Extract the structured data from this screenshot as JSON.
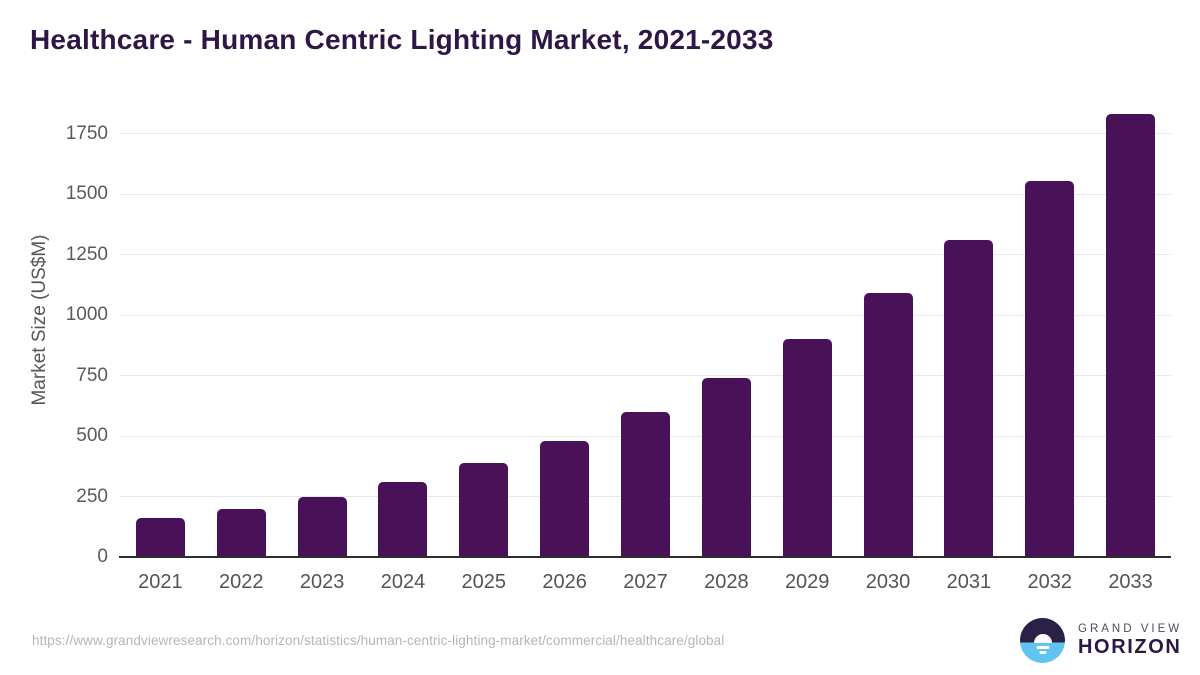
{
  "title": "Healthcare - Human Centric Lighting Market, 2021-2033",
  "chart_data": {
    "type": "bar",
    "categories": [
      "2021",
      "2022",
      "2023",
      "2024",
      "2025",
      "2026",
      "2027",
      "2028",
      "2029",
      "2030",
      "2031",
      "2032",
      "2033"
    ],
    "values": [
      160,
      200,
      250,
      310,
      390,
      480,
      600,
      740,
      900,
      1090,
      1310,
      1555,
      1830
    ],
    "title": "Healthcare - Human Centric Lighting Market, 2021-2033",
    "xlabel": "",
    "ylabel": "Market Size (US$M)",
    "ylim": [
      0,
      1900
    ],
    "yticks": [
      0,
      250,
      500,
      750,
      1000,
      1250,
      1500,
      1750
    ],
    "grid": true,
    "legend": "none",
    "bar_color": "#491158"
  },
  "colors": {
    "bar": "#491158",
    "title_text": "#2e1745",
    "axis_label_text": "#5a5a5a",
    "gridline": "#e8e8e8",
    "axis_line": "#2e2e2e",
    "url_text": "#b5b5b5",
    "logo_dark_half": "#2b2147",
    "logo_light_half": "#5fc5f0"
  },
  "footer": {
    "source_url": "https://www.grandviewresearch.com/horizon/statistics/human-centric-lighting-market/commercial/healthcare/global",
    "logo": {
      "line1": "GRAND VIEW",
      "line2": "HORIZON"
    }
  }
}
